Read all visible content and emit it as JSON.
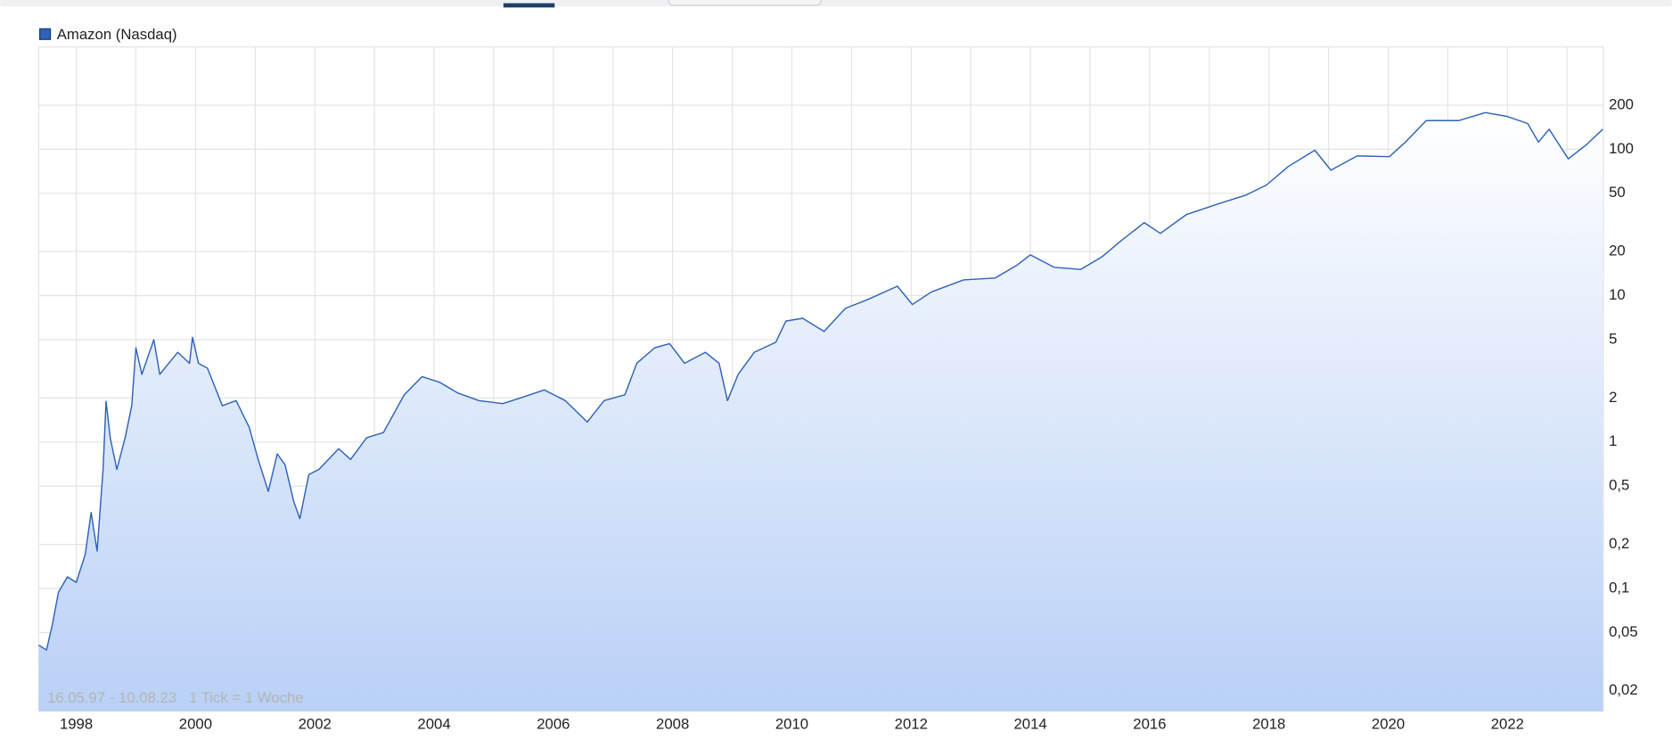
{
  "chart_data": {
    "type": "area",
    "legend": "Amazon (Nasdaq)",
    "footnote": "16.05.97 - 10.08.23   1 Tick = 1 Woche",
    "log_scale": true,
    "grid": true,
    "xlim": [
      1997.37,
      2023.61
    ],
    "xticks": [
      1998,
      2000,
      2002,
      2004,
      2006,
      2008,
      2010,
      2012,
      2014,
      2016,
      2018,
      2020,
      2022
    ],
    "ylim": [
      0.0145,
      500
    ],
    "yticks": [
      {
        "value": 0.02,
        "label": "0,02"
      },
      {
        "value": 0.05,
        "label": "0,05"
      },
      {
        "value": 0.1,
        "label": "0,1"
      },
      {
        "value": 0.2,
        "label": "0,2"
      },
      {
        "value": 0.5,
        "label": "0,5"
      },
      1,
      2,
      5,
      10,
      20,
      50,
      100,
      200
    ],
    "series": [
      {
        "name": "Amazon (Nasdaq)",
        "color": "#2f62b8",
        "x": [
          1997.37,
          1997.5,
          1997.6,
          1997.7,
          1997.85,
          1998.0,
          1998.15,
          1998.25,
          1998.35,
          1998.45,
          1998.5,
          1998.57,
          1998.68,
          1998.82,
          1998.93,
          1999.0,
          1999.1,
          1999.3,
          1999.4,
          1999.55,
          1999.7,
          1999.9,
          1999.95,
          2000.05,
          2000.2,
          2000.45,
          2000.68,
          2000.9,
          2001.05,
          2001.22,
          2001.37,
          2001.5,
          2001.65,
          2001.75,
          2001.9,
          2002.07,
          2002.4,
          2002.6,
          2002.87,
          2003.15,
          2003.5,
          2003.8,
          2004.1,
          2004.4,
          2004.75,
          2005.15,
          2005.45,
          2005.85,
          2006.2,
          2006.57,
          2006.85,
          2007.2,
          2007.4,
          2007.7,
          2007.95,
          2008.2,
          2008.55,
          2008.78,
          2008.92,
          2009.1,
          2009.37,
          2009.73,
          2009.9,
          2010.18,
          2010.54,
          2010.9,
          2011.27,
          2011.77,
          2012.02,
          2012.34,
          2012.88,
          2013.41,
          2013.77,
          2014.0,
          2014.4,
          2014.84,
          2015.2,
          2015.52,
          2015.91,
          2016.18,
          2016.62,
          2017.16,
          2017.61,
          2017.96,
          2018.32,
          2018.77,
          2019.04,
          2019.48,
          2020.02,
          2020.29,
          2020.64,
          2021.18,
          2021.63,
          2021.98,
          2022.34,
          2022.52,
          2022.7,
          2023.02,
          2023.32,
          2023.6
        ],
        "values": [
          0.041,
          0.038,
          0.057,
          0.094,
          0.12,
          0.11,
          0.17,
          0.33,
          0.18,
          0.65,
          1.9,
          1.07,
          0.65,
          1.07,
          1.77,
          4.4,
          2.9,
          5.0,
          2.9,
          3.45,
          4.1,
          3.45,
          5.2,
          3.45,
          3.2,
          1.77,
          1.92,
          1.26,
          0.76,
          0.46,
          0.83,
          0.7,
          0.39,
          0.3,
          0.6,
          0.65,
          0.9,
          0.76,
          1.07,
          1.16,
          2.1,
          2.8,
          2.55,
          2.16,
          1.92,
          1.83,
          2.0,
          2.27,
          1.92,
          1.37,
          1.92,
          2.1,
          3.45,
          4.4,
          4.7,
          3.45,
          4.1,
          3.45,
          1.92,
          2.9,
          4.1,
          4.8,
          6.7,
          7.0,
          5.7,
          8.2,
          9.4,
          11.6,
          8.7,
          10.6,
          12.8,
          13.2,
          16.1,
          19.0,
          15.6,
          15.1,
          18.4,
          23.7,
          31.5,
          26.6,
          35.9,
          42.5,
          48.5,
          57,
          76,
          98.5,
          72,
          90,
          89,
          112,
          157,
          157,
          178,
          168,
          150,
          112,
          137,
          86,
          107,
          137
        ]
      }
    ]
  }
}
